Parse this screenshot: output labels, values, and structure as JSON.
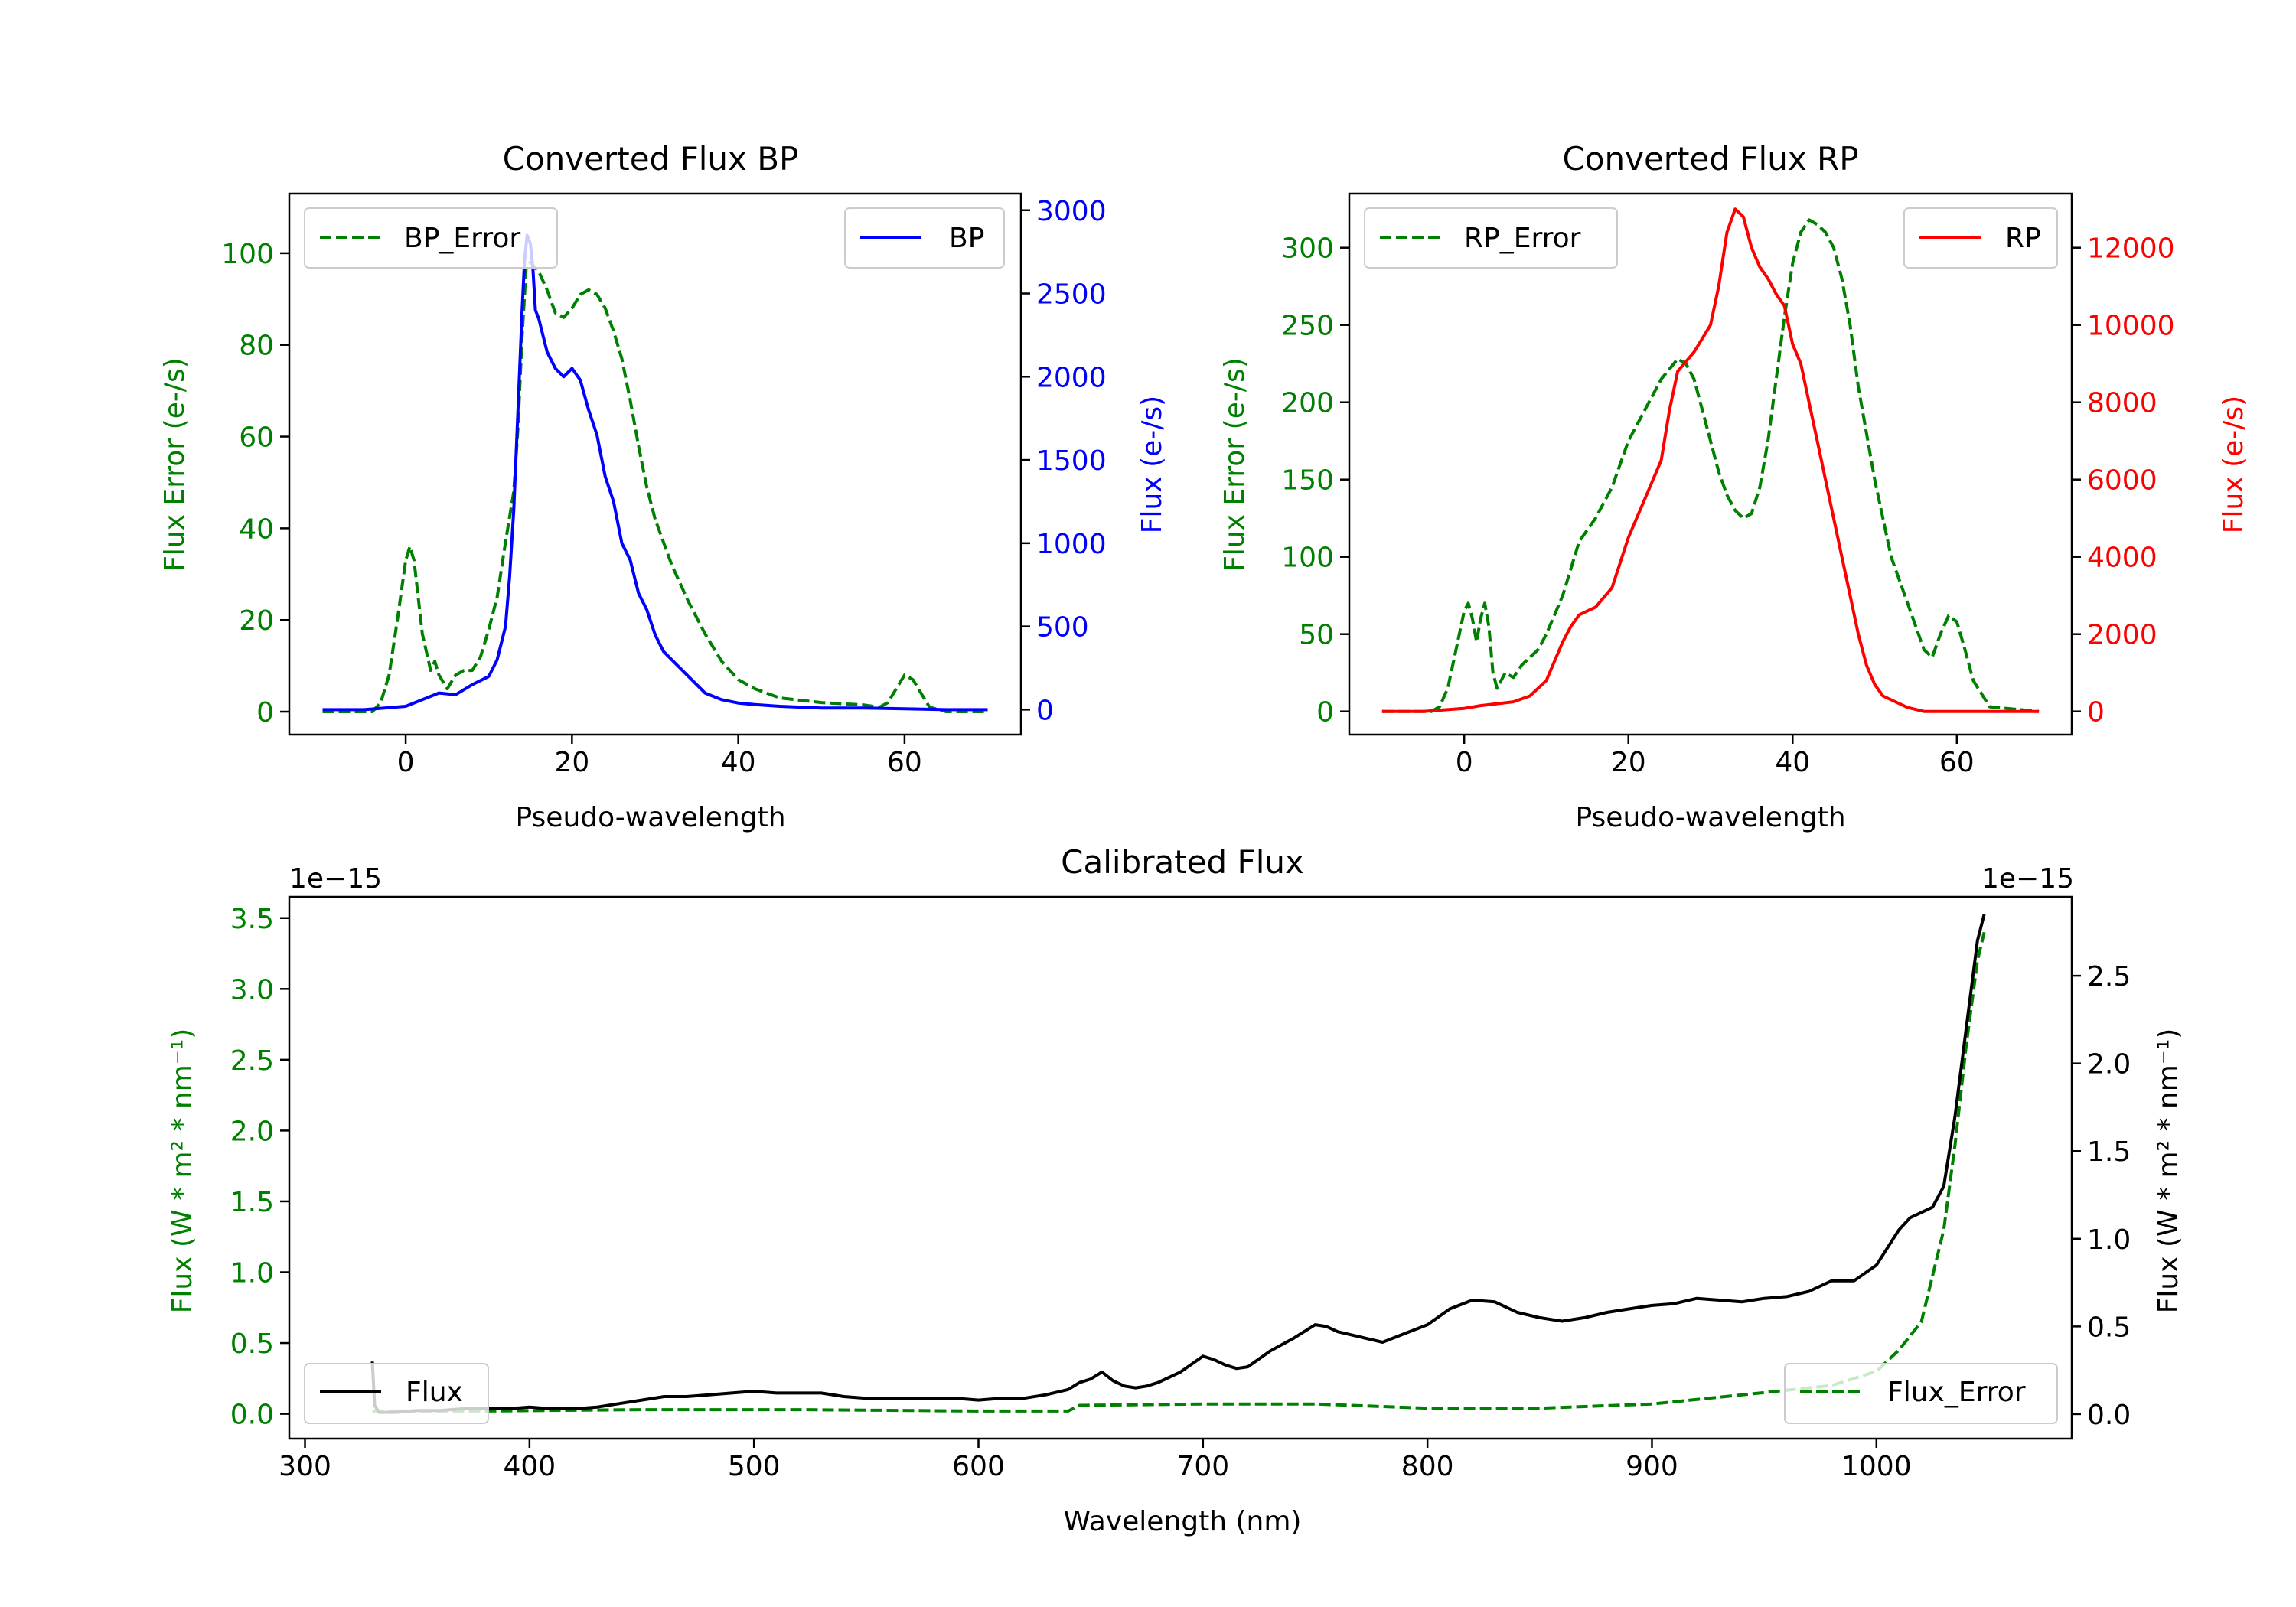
{
  "colors": {
    "error": "#008000",
    "bp": "#0000ff",
    "rp": "#ff0000",
    "flux": "#000000",
    "axis": "#000000"
  },
  "chart_data": [
    {
      "type": "line",
      "title": "Converted Flux BP",
      "xlabel": "Pseudo-wavelength",
      "ylabel_left": "Flux Error (e-/s)",
      "ylabel_right": "Flux (e-/s)",
      "xlim": [
        -14,
        74
      ],
      "ylim_left": [
        -5,
        113
      ],
      "ylim_right": [
        -150,
        3100
      ],
      "xticks": [
        0,
        20,
        40,
        60
      ],
      "yticks_left": [
        0,
        20,
        40,
        60,
        80,
        100
      ],
      "yticks_right": [
        0,
        500,
        1000,
        1500,
        2000,
        2500,
        3000
      ],
      "legends": [
        {
          "label": "BP_Error",
          "position": "upper-left"
        },
        {
          "label": "BP",
          "position": "upper-right"
        }
      ],
      "series": [
        {
          "name": "BP_Error",
          "axis": "left",
          "style": "dashed",
          "color": "#008000",
          "x": [
            -10,
            -4,
            -3,
            -2,
            -1,
            0,
            0.5,
            1,
            2,
            3,
            3.5,
            4,
            5,
            6,
            7,
            8,
            9,
            10,
            11,
            12,
            13,
            13.5,
            14,
            14.5,
            15,
            16,
            17,
            18,
            19,
            20,
            21,
            22,
            23,
            24,
            25,
            26,
            27,
            28,
            29,
            30,
            32,
            34,
            36,
            38,
            40,
            42,
            45,
            50,
            55,
            57,
            58,
            59,
            60,
            61,
            62,
            63,
            65,
            70
          ],
          "y": [
            0,
            0,
            2,
            8,
            20,
            33,
            36,
            33,
            17,
            9,
            11,
            8,
            5,
            8,
            9,
            9,
            12,
            18,
            25,
            37,
            48,
            62,
            82,
            97,
            98,
            96,
            92,
            87,
            86,
            88,
            91,
            92,
            91,
            88,
            83,
            77,
            68,
            58,
            49,
            42,
            32,
            24,
            17,
            11,
            7,
            5,
            3,
            2,
            1.5,
            1,
            2,
            5,
            8,
            7,
            4,
            1,
            0,
            0
          ]
        },
        {
          "name": "BP",
          "axis": "right",
          "style": "solid",
          "color": "#0000ff",
          "x": [
            -10,
            -5,
            0,
            2,
            4,
            6,
            8,
            10,
            11,
            12,
            12.5,
            13,
            13.5,
            14,
            14.3,
            14.6,
            15,
            15.3,
            15.6,
            16,
            17,
            18,
            19,
            20,
            21,
            22,
            23,
            24,
            25,
            26,
            27,
            28,
            29,
            30,
            31,
            32,
            33,
            34,
            35,
            36,
            37,
            38,
            40,
            42,
            45,
            50,
            55,
            60,
            65,
            70
          ],
          "y": [
            0,
            0,
            20,
            60,
            100,
            90,
            150,
            200,
            300,
            500,
            800,
            1200,
            1800,
            2400,
            2700,
            2850,
            2800,
            2650,
            2400,
            2350,
            2150,
            2050,
            2000,
            2050,
            1980,
            1800,
            1650,
            1400,
            1250,
            1000,
            900,
            700,
            600,
            450,
            350,
            300,
            250,
            200,
            150,
            100,
            80,
            60,
            40,
            30,
            20,
            10,
            10,
            5,
            0,
            0
          ]
        }
      ]
    },
    {
      "type": "line",
      "title": "Converted Flux RP",
      "xlabel": "Pseudo-wavelength",
      "ylabel_left": "Flux Error (e-/s)",
      "ylabel_right": "Flux (e-/s)",
      "xlim": [
        -14,
        74
      ],
      "ylim_left": [
        -15,
        335
      ],
      "ylim_right": [
        -600,
        13400
      ],
      "xticks": [
        0,
        20,
        40,
        60
      ],
      "yticks_left": [
        0,
        50,
        100,
        150,
        200,
        250,
        300
      ],
      "yticks_right": [
        0,
        2000,
        4000,
        6000,
        8000,
        10000,
        12000
      ],
      "legends": [
        {
          "label": "RP_Error",
          "position": "upper-left"
        },
        {
          "label": "RP",
          "position": "upper-right"
        }
      ],
      "series": [
        {
          "name": "RP_Error",
          "axis": "left",
          "style": "dashed",
          "color": "#008000",
          "x": [
            -10,
            -4,
            -3,
            -2,
            -1,
            0,
            0.5,
            1,
            1.5,
            2,
            2.5,
            3,
            3.5,
            4,
            5,
            6,
            7,
            8,
            9,
            10,
            12,
            14,
            16,
            18,
            20,
            22,
            24,
            26,
            27,
            28,
            29,
            30,
            31,
            32,
            33,
            34,
            35,
            36,
            37,
            38,
            39,
            40,
            41,
            42,
            43,
            44,
            45,
            46,
            47,
            48,
            50,
            52,
            54,
            56,
            57,
            58,
            59,
            60,
            61,
            62,
            64,
            70
          ],
          "y": [
            0,
            0,
            3,
            15,
            40,
            65,
            70,
            60,
            45,
            60,
            70,
            55,
            25,
            15,
            25,
            22,
            30,
            35,
            40,
            50,
            75,
            110,
            125,
            145,
            175,
            195,
            215,
            228,
            225,
            215,
            195,
            175,
            155,
            140,
            130,
            125,
            128,
            145,
            175,
            215,
            255,
            290,
            310,
            318,
            315,
            310,
            300,
            280,
            250,
            210,
            150,
            100,
            70,
            40,
            35,
            50,
            62,
            58,
            40,
            20,
            3,
            0
          ]
        },
        {
          "name": "RP",
          "axis": "right",
          "style": "solid",
          "color": "#ff0000",
          "x": [
            -10,
            -5,
            0,
            2,
            4,
            6,
            8,
            10,
            11,
            12,
            13,
            14,
            15,
            16,
            18,
            20,
            22,
            24,
            25,
            26,
            28,
            30,
            31,
            32,
            33,
            34,
            35,
            36,
            37,
            38,
            39,
            40,
            41,
            42,
            43,
            44,
            45,
            46,
            47,
            48,
            49,
            50,
            51,
            52,
            54,
            56,
            58,
            60,
            62,
            65,
            70
          ],
          "y": [
            0,
            0,
            80,
            150,
            200,
            250,
            400,
            800,
            1300,
            1800,
            2200,
            2500,
            2600,
            2700,
            3200,
            4500,
            5500,
            6500,
            7800,
            8800,
            9300,
            10000,
            11000,
            12400,
            13000,
            12800,
            12000,
            11500,
            11200,
            10800,
            10500,
            9500,
            9000,
            8000,
            7000,
            6000,
            5000,
            4000,
            3000,
            2000,
            1200,
            700,
            400,
            300,
            100,
            0,
            0,
            0,
            0,
            0,
            0
          ]
        }
      ]
    },
    {
      "type": "line",
      "title": "Calibrated Flux",
      "xlabel": "Wavelength (nm)",
      "ylabel_left": "Flux (W * m² * nm⁻¹)",
      "ylabel_right": "Flux (W * m² * nm⁻¹)",
      "offset_left": "1e−15",
      "offset_right": "1e−15",
      "xlim": [
        293,
        1087
      ],
      "ylim_left": [
        -0.175,
        3.65
      ],
      "ylim_right": [
        -0.14,
        2.95
      ],
      "xticks": [
        300,
        400,
        500,
        600,
        700,
        800,
        900,
        1000
      ],
      "yticks_left": [
        0.0,
        0.5,
        1.0,
        1.5,
        2.0,
        2.5,
        3.0,
        3.5
      ],
      "yticks_right": [
        0.0,
        0.5,
        1.0,
        1.5,
        2.0,
        2.5
      ],
      "legends": [
        {
          "label": "Flux",
          "position": "lower-left"
        },
        {
          "label": "Flux_Error",
          "position": "lower-right"
        }
      ],
      "series": [
        {
          "name": "Flux_Error",
          "axis": "left",
          "style": "dashed",
          "color": "#008000",
          "x": [
            330,
            380,
            450,
            520,
            600,
            640,
            645,
            700,
            750,
            800,
            850,
            900,
            950,
            980,
            1000,
            1010,
            1020,
            1030,
            1035,
            1040,
            1045,
            1048
          ],
          "y": [
            0.02,
            0.02,
            0.03,
            0.03,
            0.02,
            0.02,
            0.06,
            0.07,
            0.07,
            0.04,
            0.04,
            0.07,
            0.15,
            0.2,
            0.3,
            0.45,
            0.65,
            1.3,
            1.9,
            2.6,
            3.2,
            3.4
          ]
        },
        {
          "name": "Flux",
          "axis": "right",
          "style": "solid",
          "color": "#000000",
          "x": [
            330,
            331,
            333,
            336,
            340,
            350,
            360,
            370,
            380,
            390,
            400,
            410,
            420,
            430,
            440,
            450,
            460,
            470,
            480,
            490,
            500,
            510,
            520,
            530,
            540,
            550,
            560,
            570,
            580,
            590,
            600,
            610,
            620,
            630,
            640,
            645,
            650,
            655,
            660,
            665,
            670,
            675,
            680,
            690,
            700,
            705,
            710,
            715,
            720,
            730,
            740,
            750,
            755,
            760,
            770,
            780,
            790,
            800,
            810,
            820,
            830,
            840,
            850,
            860,
            870,
            880,
            890,
            900,
            910,
            920,
            930,
            940,
            950,
            960,
            970,
            980,
            990,
            1000,
            1010,
            1015,
            1020,
            1025,
            1030,
            1035,
            1040,
            1045,
            1048
          ],
          "y": [
            0.3,
            0.05,
            0.01,
            0.01,
            0.01,
            0.02,
            0.02,
            0.03,
            0.03,
            0.03,
            0.04,
            0.03,
            0.03,
            0.04,
            0.06,
            0.08,
            0.1,
            0.1,
            0.11,
            0.12,
            0.13,
            0.12,
            0.12,
            0.12,
            0.1,
            0.09,
            0.09,
            0.09,
            0.09,
            0.09,
            0.08,
            0.09,
            0.09,
            0.11,
            0.14,
            0.18,
            0.2,
            0.24,
            0.19,
            0.16,
            0.15,
            0.16,
            0.18,
            0.24,
            0.33,
            0.31,
            0.28,
            0.26,
            0.27,
            0.36,
            0.43,
            0.51,
            0.5,
            0.47,
            0.44,
            0.41,
            0.46,
            0.51,
            0.6,
            0.65,
            0.64,
            0.58,
            0.55,
            0.53,
            0.55,
            0.58,
            0.6,
            0.62,
            0.63,
            0.66,
            0.65,
            0.64,
            0.66,
            0.67,
            0.7,
            0.76,
            0.76,
            0.85,
            1.05,
            1.12,
            1.15,
            1.18,
            1.3,
            1.7,
            2.2,
            2.7,
            2.85
          ]
        }
      ]
    }
  ]
}
